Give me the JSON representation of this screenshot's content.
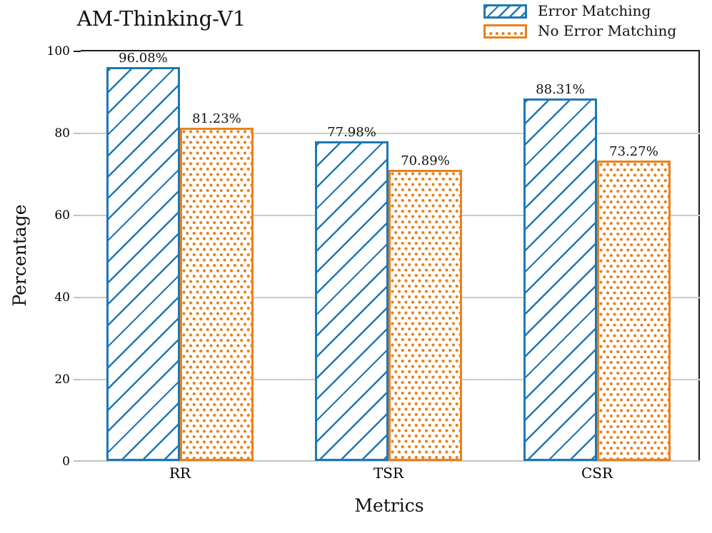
{
  "chart_data": {
    "type": "bar",
    "title": "AM-Thinking-V1",
    "xlabel": "Metrics",
    "ylabel": "Percentage",
    "categories": [
      "RR",
      "TSR",
      "CSR"
    ],
    "series": [
      {
        "name": "Error Matching",
        "hatch": "diagonal",
        "color": "#1f77b4",
        "values": [
          96.08,
          77.98,
          88.31
        ],
        "value_labels": [
          "96.08%",
          "77.98%",
          "88.31%"
        ]
      },
      {
        "name": "No Error Matching",
        "hatch": "dots",
        "color": "#e8821e",
        "values": [
          81.23,
          70.89,
          73.27
        ],
        "value_labels": [
          "81.23%",
          "70.89%",
          "73.27%"
        ]
      }
    ],
    "ylim": [
      0,
      100
    ],
    "yticks": [
      0,
      20,
      40,
      60,
      80,
      100
    ],
    "grid": true,
    "legend_position": "top-right"
  }
}
